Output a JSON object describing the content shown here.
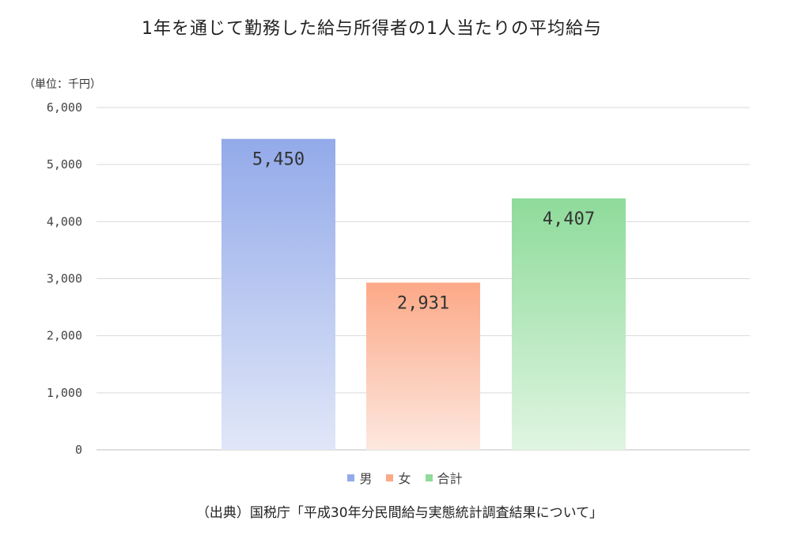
{
  "chart_data": {
    "type": "bar",
    "title": "1年を通じて勤務した給与所得者の1人当たりの平均給与",
    "unit_label": "（単位：千円）",
    "categories": [
      "男",
      "女",
      "合計"
    ],
    "values": [
      5450,
      2931,
      4407
    ],
    "value_labels": [
      "5,450",
      "2,931",
      "4,407"
    ],
    "ylim": [
      0,
      6000
    ],
    "yticks": [
      0,
      1000,
      2000,
      3000,
      4000,
      5000,
      6000
    ],
    "ytick_labels": [
      "0",
      "1,000",
      "2,000",
      "3,000",
      "4,000",
      "5,000",
      "6,000"
    ],
    "grid": true,
    "legend_position": "bottom",
    "colors": [
      {
        "top": "#93aaea",
        "bottom": "#e1e7f8"
      },
      {
        "top": "#fca987",
        "bottom": "#fde8e0"
      },
      {
        "top": "#8edb9a",
        "bottom": "#e0f5e2"
      }
    ]
  },
  "legend": [
    {
      "label": "男",
      "color": "#93aaea"
    },
    {
      "label": "女",
      "color": "#fca987"
    },
    {
      "label": "合計",
      "color": "#8edb9a"
    }
  ],
  "source": "（出典）国税庁「平成30年分民間給与実態統計調査結果について」"
}
